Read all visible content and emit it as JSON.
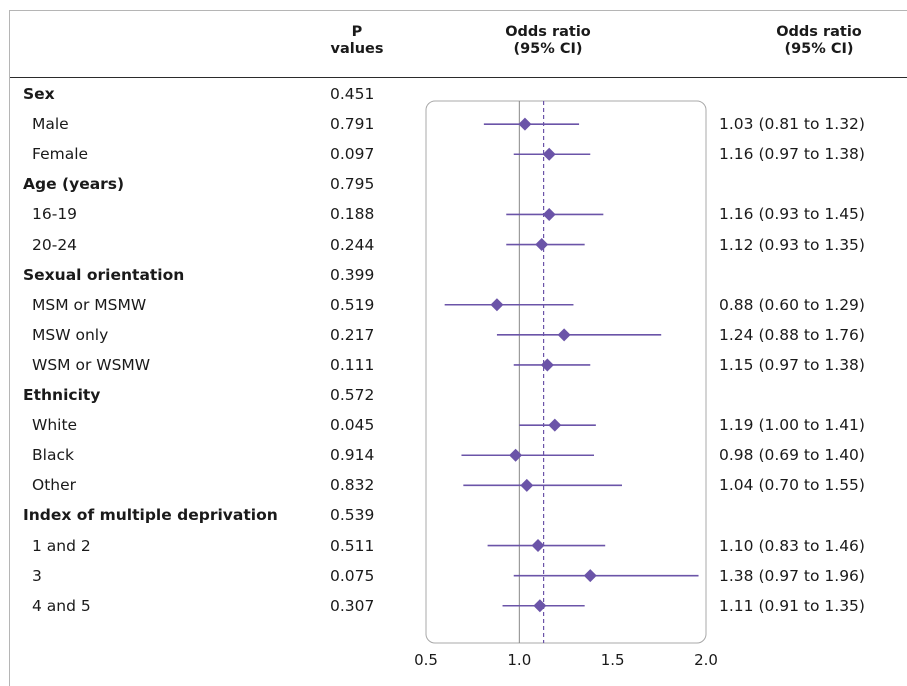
{
  "header": {
    "p_line1": "P",
    "p_line2": "values",
    "or_line1": "Odds ratio",
    "or_line2": "(95% CI)",
    "ci_line1": "Odds ratio",
    "ci_line2": "(95% CI)"
  },
  "chart_data": {
    "type": "forest",
    "xlim": [
      0.5,
      2.0
    ],
    "xticks": [
      "0.5",
      "1.0",
      "1.5",
      "2.0"
    ],
    "reference_line": 1.0,
    "pooled_line": 1.13,
    "colors": {
      "marker": "#6b54a8",
      "axis": "#888888"
    },
    "rows": [
      {
        "label": "Sex",
        "group": true,
        "p": "0.451"
      },
      {
        "label": "Male",
        "p": "0.791",
        "or": 1.03,
        "lo": 0.81,
        "hi": 1.32,
        "text": "1.03 (0.81 to 1.32)"
      },
      {
        "label": "Female",
        "p": "0.097",
        "or": 1.16,
        "lo": 0.97,
        "hi": 1.38,
        "text": "1.16 (0.97 to 1.38)"
      },
      {
        "label": "Age (years)",
        "group": true,
        "p": "0.795"
      },
      {
        "label": "16-19",
        "p": "0.188",
        "or": 1.16,
        "lo": 0.93,
        "hi": 1.45,
        "text": "1.16 (0.93 to 1.45)"
      },
      {
        "label": "20-24",
        "p": "0.244",
        "or": 1.12,
        "lo": 0.93,
        "hi": 1.35,
        "text": "1.12 (0.93 to 1.35)"
      },
      {
        "label": "Sexual orientation",
        "group": true,
        "p": "0.399"
      },
      {
        "label": "MSM or MSMW",
        "p": "0.519",
        "or": 0.88,
        "lo": 0.6,
        "hi": 1.29,
        "text": "0.88 (0.60 to 1.29)"
      },
      {
        "label": "MSW only",
        "p": "0.217",
        "or": 1.24,
        "lo": 0.88,
        "hi": 1.76,
        "text": "1.24 (0.88 to 1.76)"
      },
      {
        "label": "WSM or WSMW",
        "p": "0.111",
        "or": 1.15,
        "lo": 0.97,
        "hi": 1.38,
        "text": "1.15 (0.97 to 1.38)"
      },
      {
        "label": "Ethnicity",
        "group": true,
        "p": "0.572"
      },
      {
        "label": "White",
        "p": "0.045",
        "or": 1.19,
        "lo": 1.0,
        "hi": 1.41,
        "text": "1.19 (1.00 to 1.41)"
      },
      {
        "label": "Black",
        "p": "0.914",
        "or": 0.98,
        "lo": 0.69,
        "hi": 1.4,
        "text": "0.98 (0.69 to 1.40)"
      },
      {
        "label": "Other",
        "p": "0.832",
        "or": 1.04,
        "lo": 0.7,
        "hi": 1.55,
        "text": "1.04 (0.70 to 1.55)"
      },
      {
        "label": "Index of multiple deprivation",
        "group": true,
        "p": "0.539"
      },
      {
        "label": "1 and 2",
        "p": "0.511",
        "or": 1.1,
        "lo": 0.83,
        "hi": 1.46,
        "text": "1.10 (0.83 to 1.46)"
      },
      {
        "label": "3",
        "p": "0.075",
        "or": 1.38,
        "lo": 0.97,
        "hi": 1.96,
        "text": "1.38 (0.97 to 1.96)"
      },
      {
        "label": "4 and 5",
        "p": "0.307",
        "or": 1.11,
        "lo": 0.91,
        "hi": 1.35,
        "text": "1.11 (0.91 to 1.35)"
      }
    ]
  }
}
